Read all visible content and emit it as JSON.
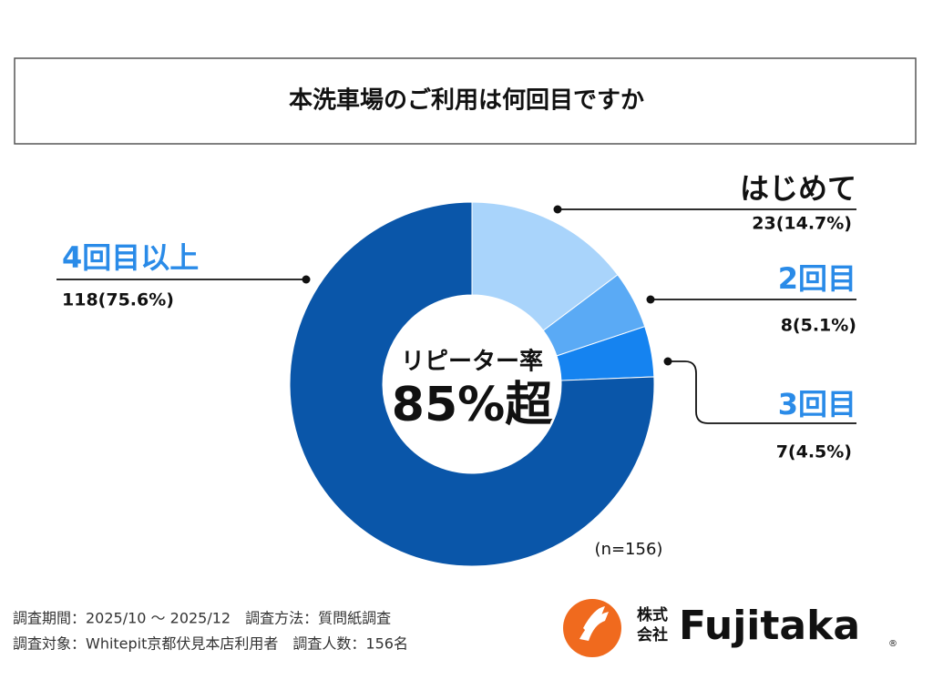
{
  "chart_data": {
    "type": "pie",
    "donut": true,
    "title": "本洗車場のご利用は何回目ですか",
    "categories": [
      "はじめて",
      "2回目",
      "3回目",
      "4回目以上"
    ],
    "values": [
      23,
      8,
      7,
      118
    ],
    "value_labels": [
      "23(14.7%)",
      "8(5.1%)",
      "7(4.5%)",
      "118(75.6%)"
    ],
    "colors": [
      "#a9d4fb",
      "#5aaaf5",
      "#1583f0",
      "#0a56a9"
    ],
    "label_colors": [
      "#111111",
      "#2a8be8",
      "#2a8be8",
      "#2a8be8"
    ],
    "center_label": "リピーター率",
    "center_value": "85%超",
    "note": "(n=156)"
  },
  "footer": {
    "lines": [
      "調査期間：2025/10 〜 2025/12　調査方法：質問紙調査",
      "調査対象：Whitepit京都伏見本店利用者　調査人数：156名"
    ]
  },
  "logo": {
    "prefix_top": "株式",
    "prefix_bottom": "会社",
    "name": "Fujitaka",
    "mark": "®"
  }
}
